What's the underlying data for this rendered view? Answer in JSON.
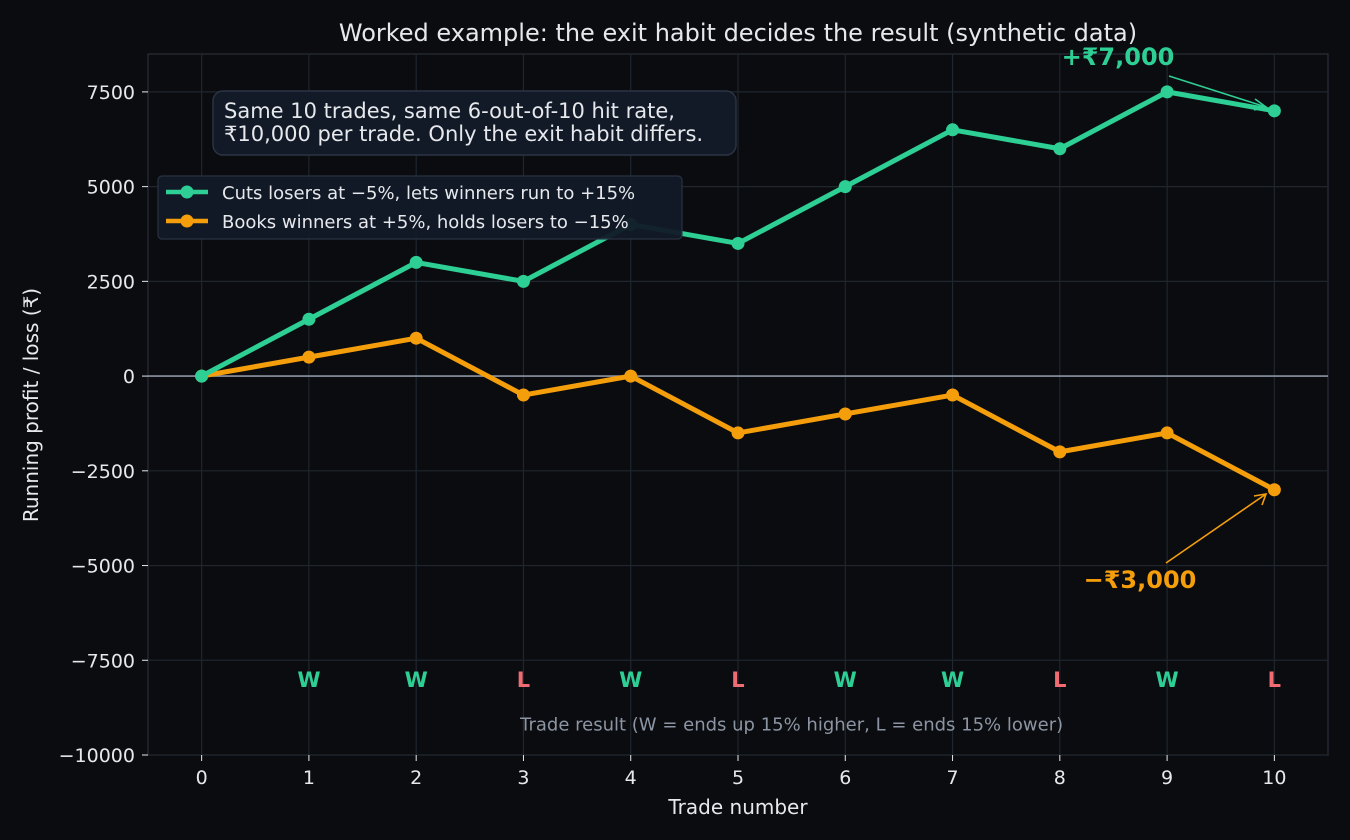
{
  "chart_data": {
    "type": "line",
    "title": "Worked example: the exit habit decides the result (synthetic data)",
    "xlabel": "Trade number",
    "ylabel": "Running profit / loss (₹)",
    "x": [
      0,
      1,
      2,
      3,
      4,
      5,
      6,
      7,
      8,
      9,
      10
    ],
    "xlim": [
      -0.5,
      10.5
    ],
    "ylim": [
      -10000,
      8500
    ],
    "yticks": [
      -10000,
      -7500,
      -5000,
      -2500,
      0,
      2500,
      5000,
      7500
    ],
    "ytick_labels": [
      "−10000",
      "−7500",
      "−5000",
      "−2500",
      "0",
      "2500",
      "5000",
      "7500"
    ],
    "xtick_labels": [
      "0",
      "1",
      "2",
      "3",
      "4",
      "5",
      "6",
      "7",
      "8",
      "9",
      "10"
    ],
    "grid": true,
    "legend_position": "upper-left",
    "series": [
      {
        "name": "Cuts losers at −5%, lets winners run to +15%",
        "color": "#2ecf94",
        "values": [
          0,
          1500,
          3000,
          2500,
          4000,
          3500,
          5000,
          6500,
          6000,
          7500,
          7000
        ]
      },
      {
        "name": "Books winners at +5%, holds losers to −15%",
        "color": "#f59e0b",
        "values": [
          0,
          500,
          1000,
          -500,
          0,
          -1500,
          -1000,
          -500,
          -2000,
          -1500,
          -3000
        ]
      }
    ],
    "note_lines": [
      "Same 10 trades, same 6-out-of-10 hit rate,",
      "₹10,000 per trade. Only the exit habit differs."
    ],
    "trade_results": [
      "W",
      "W",
      "L",
      "W",
      "L",
      "W",
      "W",
      "L",
      "W",
      "L"
    ],
    "trade_result_colors": {
      "W": "#2ecf94",
      "L": "#f06b72"
    },
    "trade_result_caption": "Trade result (W = ends up 15% higher, L = ends 15% lower)",
    "annotations": [
      {
        "text": "+₹7,000",
        "series": 0,
        "x": 10,
        "y": 7000,
        "color": "#2ecf94"
      },
      {
        "text": "−₹3,000",
        "series": 1,
        "x": 10,
        "y": -3000,
        "color": "#f59e0b"
      }
    ]
  }
}
